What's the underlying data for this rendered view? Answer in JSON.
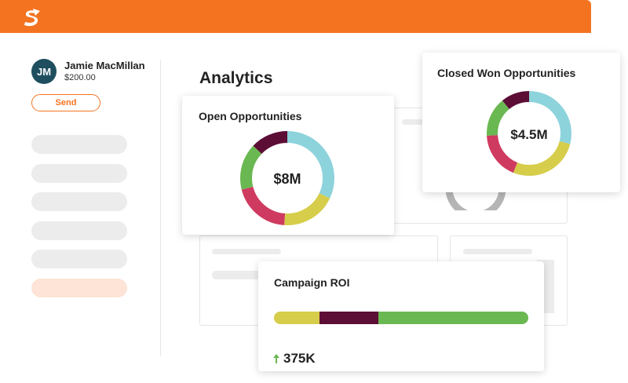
{
  "user": {
    "initials": "JM",
    "name": "Jamie MacMillan",
    "balance": "$200.00"
  },
  "sidebar": {
    "send_label": "Send",
    "item_count": 6,
    "active_index": 5
  },
  "main": {
    "title": "Analytics"
  },
  "colors": {
    "brand": "#f47321",
    "cyan": "#8dd3dc",
    "yellow": "#d6cd4a",
    "pink": "#cf3a60",
    "green": "#6ab851",
    "maroon": "#5c0e35",
    "avatar": "#1f4e5f"
  },
  "open_opportunities": {
    "title": "Open Opportunities",
    "value": "$8M",
    "segments": [
      {
        "color": "#8dd3dc",
        "fraction": 0.32
      },
      {
        "color": "#d6cd4a",
        "fraction": 0.19
      },
      {
        "color": "#cf3a60",
        "fraction": 0.2
      },
      {
        "color": "#6ab851",
        "fraction": 0.16
      },
      {
        "color": "#5c0e35",
        "fraction": 0.13
      }
    ]
  },
  "closed_won": {
    "title": "Closed Won Opportunities",
    "value": "$4.5M",
    "segments": [
      {
        "color": "#8dd3dc",
        "fraction": 0.29
      },
      {
        "color": "#d6cd4a",
        "fraction": 0.27
      },
      {
        "color": "#cf3a60",
        "fraction": 0.18
      },
      {
        "color": "#6ab851",
        "fraction": 0.15
      },
      {
        "color": "#5c0e35",
        "fraction": 0.11
      }
    ]
  },
  "campaign_roi": {
    "title": "Campaign ROI",
    "value": "375K",
    "segments": [
      {
        "color": "#d6cd4a",
        "fraction": 0.18
      },
      {
        "color": "#5c0e35",
        "fraction": 0.23
      },
      {
        "color": "#6ab851",
        "fraction": 0.59
      }
    ]
  }
}
